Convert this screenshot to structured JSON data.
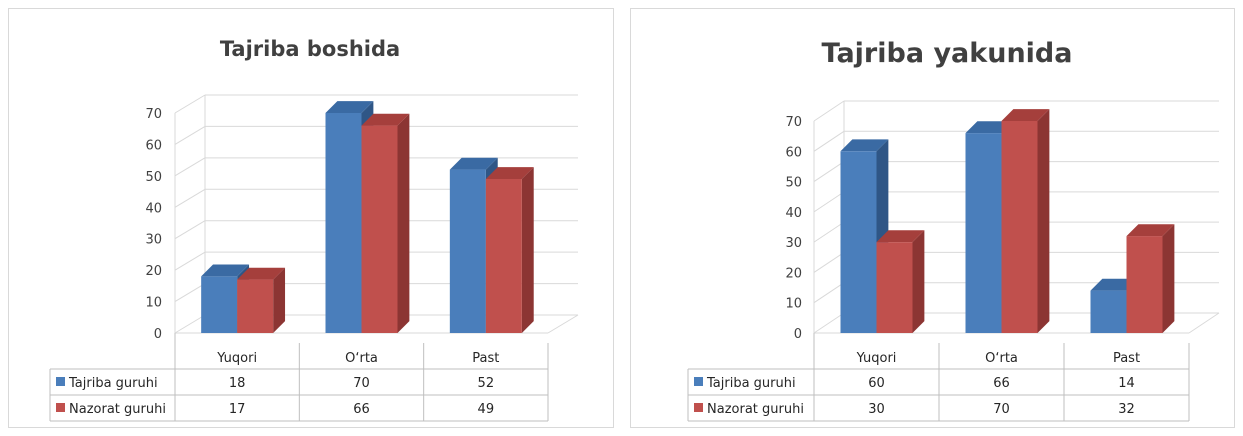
{
  "chart_data": [
    {
      "type": "bar",
      "title": "Tajriba boshida",
      "categories": [
        "Yuqori",
        "O‘rta",
        "Past"
      ],
      "series": [
        {
          "name": "Tajriba guruhi",
          "values": [
            18,
            70,
            52
          ]
        },
        {
          "name": "Nazorat guruhi",
          "values": [
            17,
            66,
            49
          ]
        }
      ],
      "yticks": [
        "0",
        "10",
        "20",
        "30",
        "40",
        "50",
        "60",
        "70"
      ],
      "ylim": [
        0,
        70
      ],
      "grid": true,
      "legend": "data-table"
    },
    {
      "type": "bar",
      "title": "Tajriba yakunida",
      "categories": [
        "Yuqori",
        "O‘rta",
        "Past"
      ],
      "series": [
        {
          "name": "Tajriba guruhi",
          "values": [
            60,
            66,
            14
          ]
        },
        {
          "name": "Nazorat guruhi",
          "values": [
            30,
            70,
            32
          ]
        }
      ],
      "yticks": [
        "0",
        "10",
        "20",
        "30",
        "40",
        "50",
        "60",
        "70"
      ],
      "ylim": [
        0,
        70
      ],
      "grid": true,
      "legend": "data-table"
    }
  ],
  "colors": {
    "series_front": [
      "#4a7ebb",
      "#c0504d"
    ],
    "series_side": [
      "#2f5686",
      "#8c3533"
    ],
    "series_top": [
      "#3a6aa3",
      "#a53f3c"
    ],
    "grid": "#d9d9d9",
    "table_border": "#bfbfbf"
  }
}
